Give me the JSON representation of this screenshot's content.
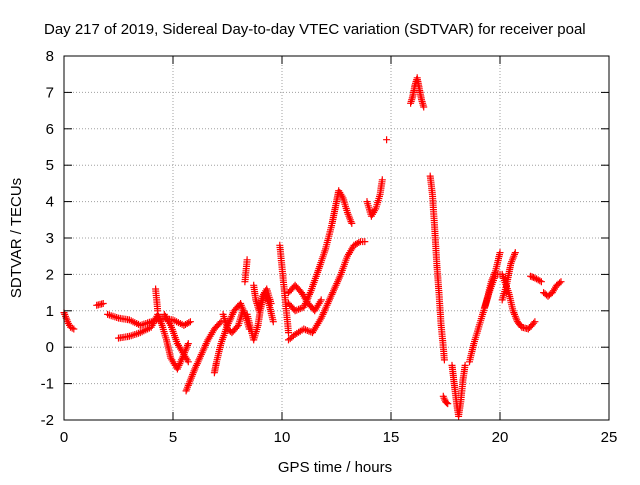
{
  "chart_data": {
    "type": "scatter",
    "title": "Day 217 of 2019, Sidereal Day-to-day VTEC variation (SDTVAR) for receiver poal",
    "xlabel": "GPS time / hours",
    "ylabel": "SDTVAR / TECUs",
    "xlim": [
      0,
      25
    ],
    "ylim": [
      -2,
      8
    ],
    "x_ticks": [
      0,
      5,
      10,
      15,
      20,
      25
    ],
    "x_tick_labels": [
      "0",
      "5",
      "10",
      "15",
      "20",
      "25"
    ],
    "y_ticks": [
      -2,
      -1,
      0,
      1,
      2,
      3,
      4,
      5,
      6,
      7,
      8
    ],
    "y_tick_labels": [
      "-2",
      "-1",
      "0",
      "1",
      "2",
      "3",
      "4",
      "5",
      "6",
      "7",
      "8"
    ],
    "grid": true,
    "marker": "+",
    "color": "#ff0000",
    "series": [
      {
        "name": "SDTVAR",
        "tracks": [
          [
            [
              0.0,
              0.95
            ],
            [
              0.1,
              0.8
            ],
            [
              0.2,
              0.65
            ],
            [
              0.3,
              0.55
            ],
            [
              0.45,
              0.5
            ]
          ],
          [
            [
              1.5,
              1.15
            ],
            [
              1.8,
              1.2
            ]
          ],
          [
            [
              2.0,
              0.9
            ],
            [
              2.5,
              0.8
            ],
            [
              3.0,
              0.75
            ],
            [
              3.5,
              0.6
            ],
            [
              4.0,
              0.7
            ],
            [
              4.5,
              0.8
            ],
            [
              5.0,
              0.75
            ],
            [
              5.5,
              0.6
            ],
            [
              5.8,
              0.7
            ]
          ],
          [
            [
              2.5,
              0.25
            ],
            [
              3.0,
              0.3
            ],
            [
              3.5,
              0.4
            ],
            [
              4.0,
              0.55
            ],
            [
              4.3,
              0.9
            ],
            [
              4.5,
              0.6
            ],
            [
              4.7,
              0.2
            ],
            [
              4.9,
              -0.3
            ],
            [
              5.2,
              -0.6
            ],
            [
              5.5,
              -0.2
            ],
            [
              5.7,
              0.1
            ]
          ],
          [
            [
              4.2,
              1.6
            ],
            [
              4.3,
              1.0
            ]
          ],
          [
            [
              4.6,
              0.9
            ],
            [
              4.9,
              0.6
            ],
            [
              5.2,
              0.1
            ],
            [
              5.5,
              -0.2
            ],
            [
              5.7,
              -0.4
            ]
          ],
          [
            [
              5.6,
              -1.2
            ],
            [
              5.8,
              -0.9
            ],
            [
              6.0,
              -0.6
            ],
            [
              6.3,
              -0.2
            ],
            [
              6.6,
              0.2
            ],
            [
              6.9,
              0.5
            ],
            [
              7.2,
              0.7
            ]
          ],
          [
            [
              6.9,
              -0.7
            ],
            [
              7.0,
              -0.4
            ],
            [
              7.2,
              0.1
            ],
            [
              7.5,
              0.6
            ],
            [
              7.8,
              1.0
            ],
            [
              8.1,
              1.2
            ],
            [
              8.3,
              0.9
            ],
            [
              8.5,
              0.5
            ]
          ],
          [
            [
              7.3,
              0.9
            ],
            [
              7.5,
              0.5
            ],
            [
              7.7,
              0.4
            ],
            [
              8.0,
              0.6
            ],
            [
              8.2,
              1.0
            ]
          ],
          [
            [
              8.3,
              1.8
            ],
            [
              8.4,
              2.4
            ]
          ],
          [
            [
              8.4,
              0.9
            ],
            [
              8.7,
              0.2
            ],
            [
              8.9,
              0.6
            ],
            [
              9.0,
              1.0
            ],
            [
              9.2,
              1.5
            ],
            [
              9.4,
              1.2
            ],
            [
              9.6,
              0.7
            ]
          ],
          [
            [
              8.7,
              1.7
            ],
            [
              8.8,
              1.3
            ],
            [
              8.95,
              1.0
            ],
            [
              9.1,
              1.4
            ],
            [
              9.3,
              1.6
            ],
            [
              9.5,
              1.2
            ]
          ],
          [
            [
              9.9,
              2.8
            ],
            [
              10.0,
              2.2
            ],
            [
              10.1,
              1.6
            ],
            [
              10.2,
              1.0
            ],
            [
              10.3,
              0.4
            ]
          ],
          [
            [
              10.3,
              1.2
            ],
            [
              10.6,
              1.0
            ],
            [
              11.0,
              1.1
            ],
            [
              11.3,
              1.5
            ],
            [
              11.6,
              2.0
            ],
            [
              12.0,
              2.7
            ],
            [
              12.3,
              3.4
            ],
            [
              12.5,
              4.0
            ],
            [
              12.6,
              4.3
            ],
            [
              12.8,
              4.1
            ],
            [
              13.0,
              3.7
            ],
            [
              13.2,
              3.4
            ]
          ],
          [
            [
              10.3,
              0.2
            ],
            [
              10.6,
              0.35
            ],
            [
              11.0,
              0.5
            ],
            [
              11.4,
              0.4
            ],
            [
              11.8,
              0.8
            ],
            [
              12.1,
              1.2
            ],
            [
              12.4,
              1.6
            ],
            [
              12.7,
              2.0
            ],
            [
              13.0,
              2.5
            ],
            [
              13.3,
              2.8
            ],
            [
              13.6,
              2.9
            ],
            [
              13.8,
              2.9
            ]
          ],
          [
            [
              10.3,
              1.5
            ],
            [
              10.6,
              1.7
            ],
            [
              10.9,
              1.5
            ],
            [
              11.2,
              1.2
            ],
            [
              11.5,
              1.0
            ],
            [
              11.8,
              1.3
            ]
          ],
          [
            [
              13.9,
              4.0
            ],
            [
              14.1,
              3.6
            ],
            [
              14.3,
              3.8
            ],
            [
              14.5,
              4.2
            ],
            [
              14.6,
              4.6
            ]
          ],
          [
            [
              14.8,
              5.7
            ]
          ],
          [
            [
              15.9,
              6.7
            ],
            [
              16.0,
              6.9
            ],
            [
              16.1,
              7.2
            ],
            [
              16.2,
              7.4
            ],
            [
              16.3,
              7.1
            ],
            [
              16.4,
              6.8
            ],
            [
              16.5,
              6.6
            ]
          ],
          [
            [
              16.8,
              4.7
            ],
            [
              16.9,
              4.2
            ],
            [
              17.0,
              3.3
            ],
            [
              17.1,
              2.3
            ],
            [
              17.2,
              1.5
            ],
            [
              17.3,
              0.6
            ],
            [
              17.4,
              0.0
            ],
            [
              17.45,
              -0.35
            ]
          ],
          [
            [
              17.4,
              -1.35
            ],
            [
              17.5,
              -1.5
            ],
            [
              17.6,
              -1.55
            ]
          ],
          [
            [
              17.8,
              -0.5
            ],
            [
              17.9,
              -1.0
            ],
            [
              18.0,
              -1.5
            ],
            [
              18.1,
              -1.9
            ],
            [
              18.2,
              -1.5
            ],
            [
              18.3,
              -0.9
            ],
            [
              18.4,
              -0.5
            ]
          ],
          [
            [
              18.6,
              -0.4
            ],
            [
              18.8,
              0.1
            ],
            [
              19.0,
              0.5
            ],
            [
              19.2,
              0.9
            ],
            [
              19.4,
              1.3
            ],
            [
              19.6,
              1.8
            ],
            [
              19.8,
              2.1
            ],
            [
              20.0,
              2.6
            ]
          ],
          [
            [
              19.3,
              1.1
            ],
            [
              19.5,
              1.5
            ],
            [
              19.8,
              2.0
            ],
            [
              20.1,
              2.0
            ],
            [
              20.4,
              1.5
            ],
            [
              20.6,
              1.0
            ],
            [
              20.8,
              0.7
            ],
            [
              21.0,
              0.55
            ],
            [
              21.3,
              0.5
            ],
            [
              21.6,
              0.7
            ]
          ],
          [
            [
              20.1,
              1.3
            ],
            [
              20.3,
              1.7
            ],
            [
              20.5,
              2.3
            ],
            [
              20.7,
              2.6
            ]
          ],
          [
            [
              21.4,
              1.95
            ],
            [
              21.6,
              1.9
            ],
            [
              21.9,
              1.8
            ]
          ],
          [
            [
              22.0,
              1.5
            ],
            [
              22.2,
              1.4
            ],
            [
              22.4,
              1.5
            ],
            [
              22.6,
              1.7
            ],
            [
              22.8,
              1.8
            ]
          ]
        ]
      }
    ]
  }
}
